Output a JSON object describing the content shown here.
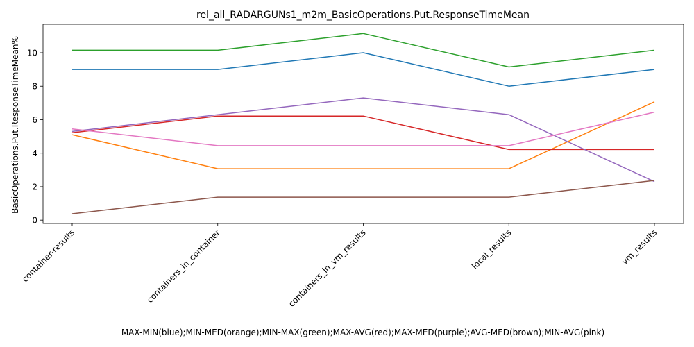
{
  "chart_data": {
    "type": "line",
    "title": "rel_all_RADARGUNs1_m2m_BasicOperations.Put.ResponseTimeMean",
    "xlabel": "MAX-MIN(blue);MIN-MED(orange);MIN-MAX(green);MAX-AVG(red);MAX-MED(purple);AVG-MED(brown);MIN-AVG(pink)",
    "ylabel": "BasicOperations.Put.ResponseTimeMean%",
    "categories": [
      "container-results",
      "containers_in_container",
      "containers_in_vm_results",
      "local_results",
      "vm_results"
    ],
    "yticks": [
      0,
      2,
      4,
      6,
      8,
      10
    ],
    "ylim": [
      -0.2,
      11.7
    ],
    "grid": false,
    "legend": "none",
    "series": [
      {
        "color": "#1f77b4",
        "values": [
          9.0,
          9.0,
          10.0,
          8.0,
          9.0
        ]
      },
      {
        "color": "#ff7f0e",
        "values": [
          5.1,
          3.07,
          3.07,
          3.07,
          7.07
        ]
      },
      {
        "color": "#2ca02c",
        "values": [
          10.15,
          10.15,
          11.15,
          9.15,
          10.15
        ]
      },
      {
        "color": "#d62728",
        "values": [
          5.22,
          6.22,
          6.22,
          4.22,
          4.22
        ]
      },
      {
        "color": "#9467bd",
        "values": [
          5.3,
          6.3,
          7.3,
          6.3,
          2.3
        ]
      },
      {
        "color": "#8c564b",
        "values": [
          0.38,
          1.37,
          1.37,
          1.37,
          2.37
        ]
      },
      {
        "color": "#e377c2",
        "values": [
          5.45,
          4.45,
          4.45,
          4.45,
          6.45
        ]
      }
    ]
  }
}
